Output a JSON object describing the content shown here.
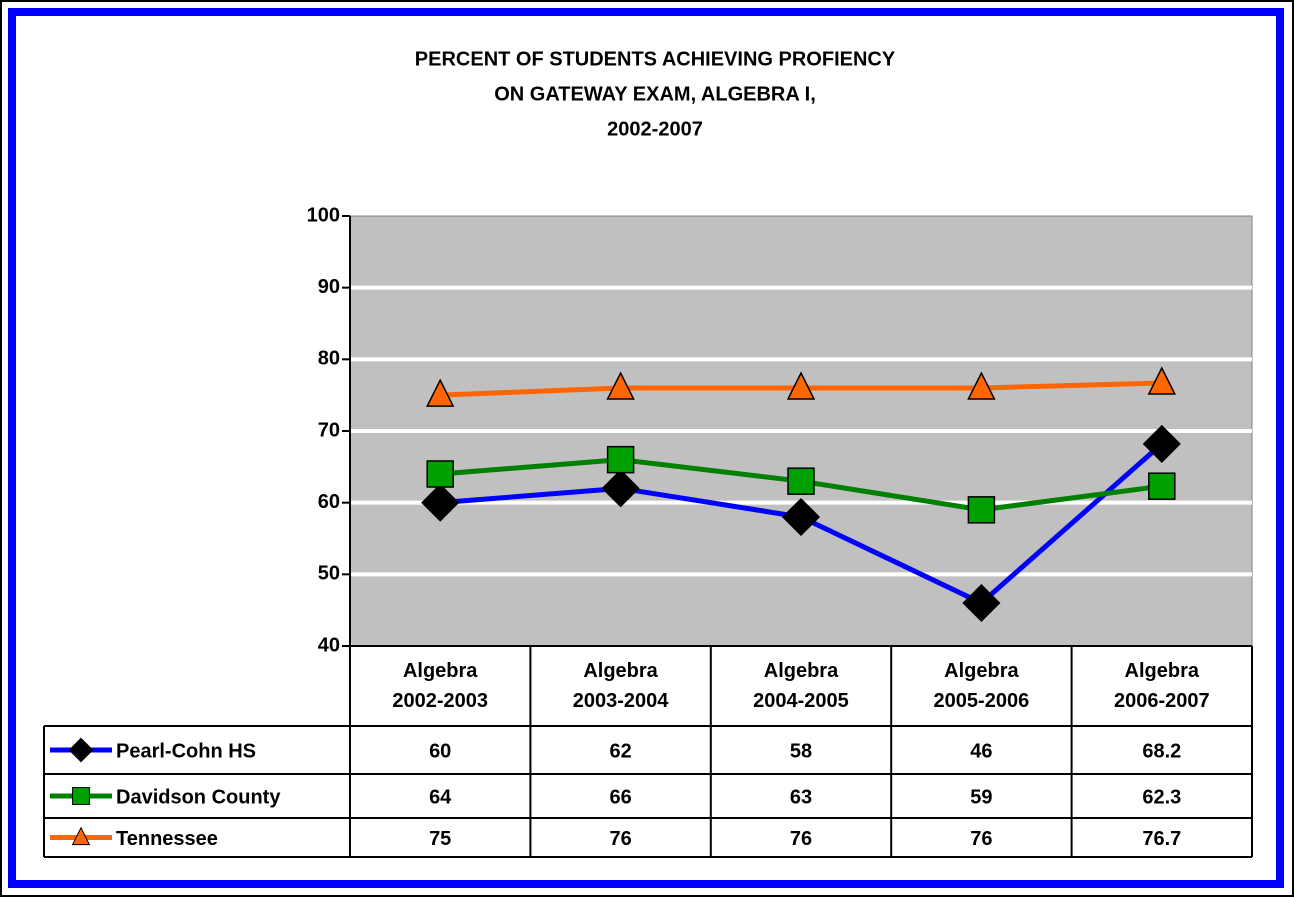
{
  "chart_data": {
    "type": "line",
    "title": [
      "PERCENT OF STUDENTS ACHIEVING PROFIENCY",
      "ON GATEWAY EXAM, ALGEBRA I,",
      "2002-2007"
    ],
    "categories": [
      "Algebra 2002-2003",
      "Algebra 2003-2004",
      "Algebra 2004-2005",
      "Algebra 2005-2006",
      "Algebra 2006-2007"
    ],
    "series": [
      {
        "name": "Pearl-Cohn HS",
        "color": "#0000ff",
        "marker": "diamond",
        "marker_color": "#000000",
        "values": [
          60,
          62,
          58,
          46,
          68.2
        ]
      },
      {
        "name": "Davidson County",
        "color": "#008000",
        "marker": "square",
        "marker_color": "#00a000",
        "values": [
          64,
          66,
          63,
          59,
          62.3
        ]
      },
      {
        "name": "Tennessee",
        "color": "#ff6600",
        "marker": "triangle",
        "marker_color": "#ff6600",
        "values": [
          75,
          76,
          76,
          76,
          76.7
        ]
      }
    ],
    "ylim": [
      40,
      100
    ],
    "yticks": [
      40,
      50,
      60,
      70,
      80,
      90,
      100
    ],
    "grid": true,
    "plot_background": "#c0c0c0"
  }
}
